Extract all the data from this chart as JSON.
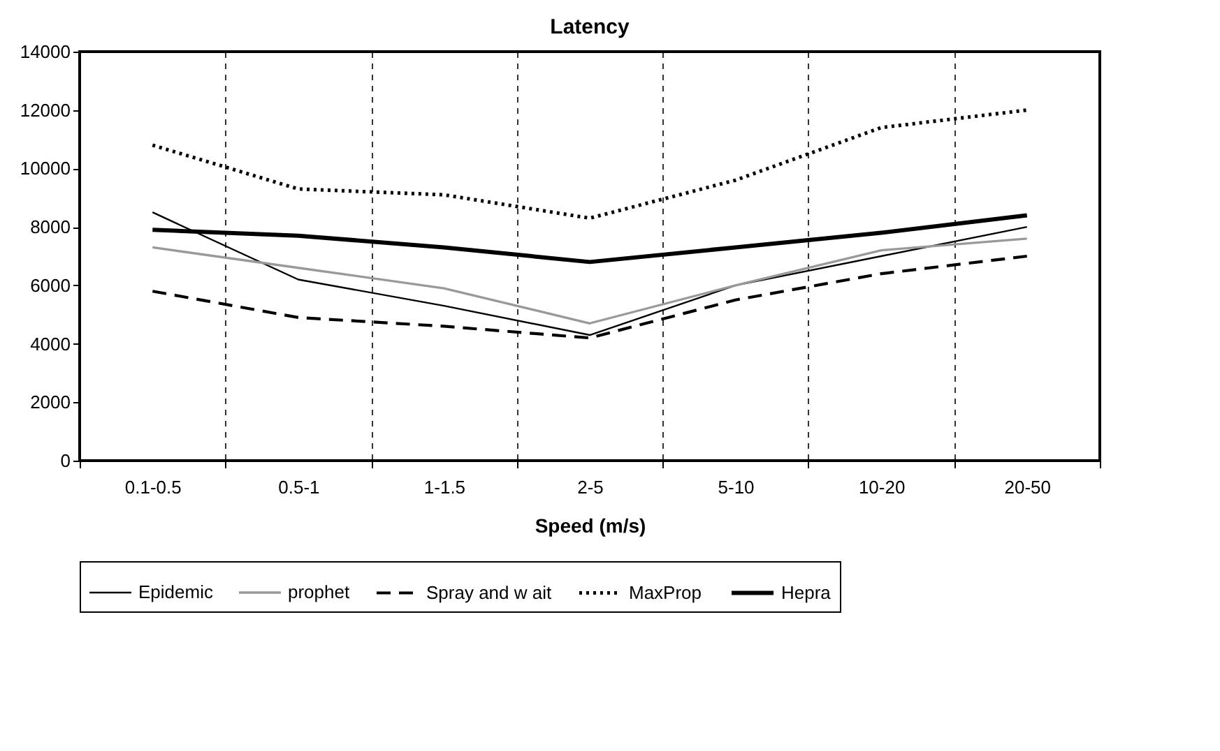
{
  "chart_data": {
    "type": "line",
    "title": "Latency",
    "xlabel": "Speed (m/s)",
    "categories": [
      "0.1-0.5",
      "0.5-1",
      "1-1.5",
      "2-5",
      "5-10",
      "10-20",
      "20-50"
    ],
    "series": [
      {
        "name": "Epidemic",
        "color": "#000000",
        "line_style": "solid",
        "values": [
          8500,
          6200,
          5300,
          4300,
          6000,
          7000,
          8000
        ]
      },
      {
        "name": "prophet",
        "color": "#999999",
        "line_style": "solid",
        "values": [
          7300,
          6600,
          5900,
          4700,
          6000,
          7200,
          7600
        ]
      },
      {
        "name": "Spray and w ait",
        "color": "#000000",
        "line_style": "dashed",
        "values": [
          5800,
          4900,
          4600,
          4200,
          5500,
          6400,
          7000
        ]
      },
      {
        "name": "MaxProp",
        "color": "#000000",
        "line_style": "dotted",
        "values": [
          10800,
          9300,
          9100,
          8300,
          9600,
          11400,
          12000
        ]
      },
      {
        "name": "Hepra",
        "color": "#000000",
        "line_style": "solid",
        "values": [
          7900,
          7700,
          7300,
          6800,
          7300,
          7800,
          8400
        ]
      }
    ],
    "ylim": [
      0,
      14000
    ],
    "yticks": [
      0,
      2000,
      4000,
      6000,
      8000,
      10000,
      12000,
      14000
    ],
    "grid": "x",
    "legend": "bottom",
    "marker": "none"
  }
}
